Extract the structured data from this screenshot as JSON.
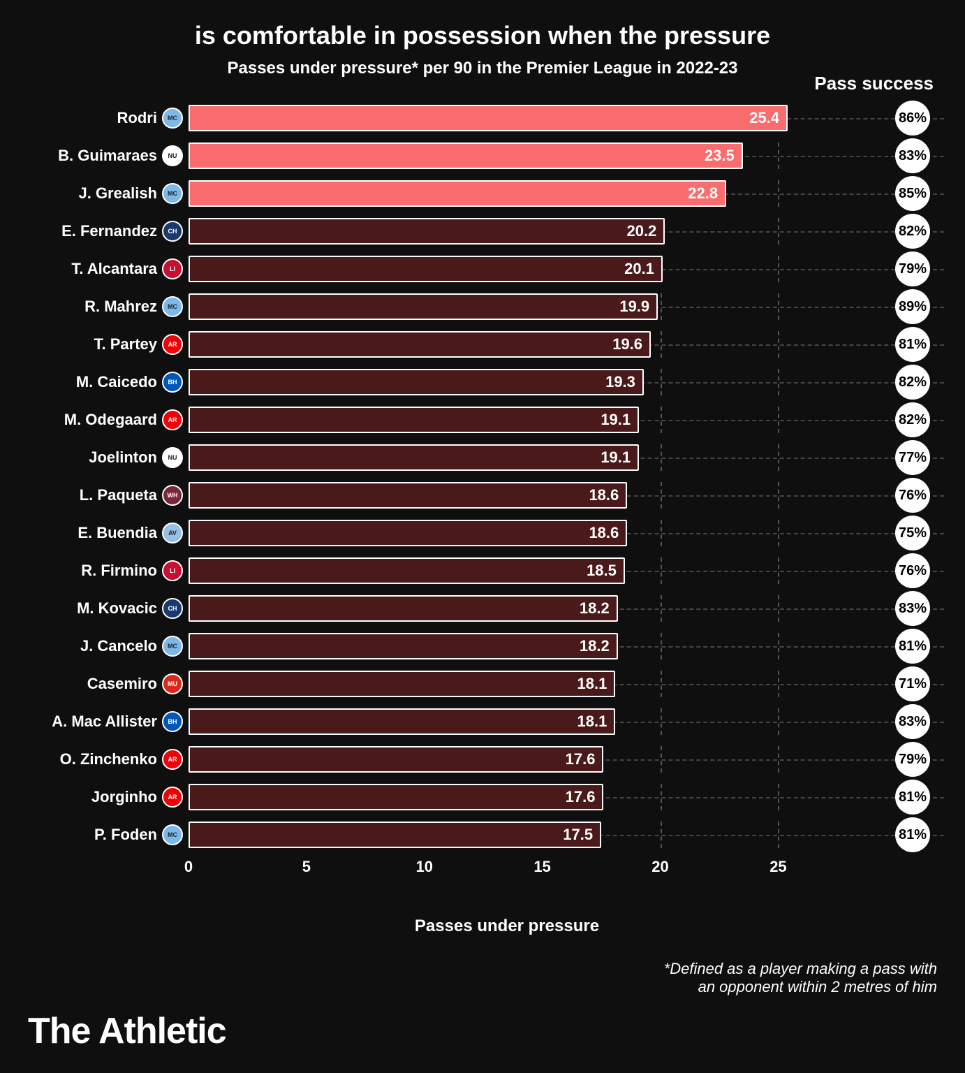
{
  "title": "is comfortable in possession when the pressure",
  "subtitle": "Passes under pressure* per 90 in the Premier League in 2022-23",
  "pass_success_header": "Pass success",
  "axis_label": "Passes under pressure",
  "footnote_line1": "*Defined as a player making a pass with",
  "footnote_line2": "an opponent within 2 metres of him",
  "brand": "The Athletic",
  "chart": {
    "type": "bar-horizontal",
    "xlim": [
      0,
      27
    ],
    "ticks": [
      0,
      5,
      10,
      15,
      20,
      25
    ],
    "background": "#0f0f0f",
    "grid_color": "#555555",
    "bar_border": "#ffffff",
    "pill_bg": "#ffffff",
    "pill_text": "#000000",
    "highlight_bar_color": "#f96d6e",
    "dim_bar_color": "#4a1a1b",
    "rows": [
      {
        "player": "Rodri",
        "value": 25.4,
        "success": "86%",
        "badge_bg": "#7cb9e8",
        "badge_txt": "MC",
        "highlighted": true
      },
      {
        "player": "B. Guimaraes",
        "value": 23.5,
        "success": "83%",
        "badge_bg": "#ffffff",
        "badge_txt": "NU",
        "highlighted": true
      },
      {
        "player": "J. Grealish",
        "value": 22.8,
        "success": "85%",
        "badge_bg": "#7cb9e8",
        "badge_txt": "MC",
        "highlighted": true
      },
      {
        "player": "E. Fernandez",
        "value": 20.2,
        "success": "82%",
        "badge_bg": "#1a3a6e",
        "badge_txt": "CH",
        "highlighted": false
      },
      {
        "player": "T. Alcantara",
        "value": 20.1,
        "success": "79%",
        "badge_bg": "#c8102e",
        "badge_txt": "LI",
        "highlighted": false
      },
      {
        "player": "R. Mahrez",
        "value": 19.9,
        "success": "89%",
        "badge_bg": "#7cb9e8",
        "badge_txt": "MC",
        "highlighted": false
      },
      {
        "player": "T. Partey",
        "value": 19.6,
        "success": "81%",
        "badge_bg": "#ef0107",
        "badge_txt": "AR",
        "highlighted": false
      },
      {
        "player": "M. Caicedo",
        "value": 19.3,
        "success": "82%",
        "badge_bg": "#0057b8",
        "badge_txt": "BH",
        "highlighted": false
      },
      {
        "player": "M. Odegaard",
        "value": 19.1,
        "success": "82%",
        "badge_bg": "#ef0107",
        "badge_txt": "AR",
        "highlighted": false
      },
      {
        "player": "Joelinton",
        "value": 19.1,
        "success": "77%",
        "badge_bg": "#ffffff",
        "badge_txt": "NU",
        "highlighted": false
      },
      {
        "player": "L. Paqueta",
        "value": 18.6,
        "success": "76%",
        "badge_bg": "#7a263a",
        "badge_txt": "WH",
        "highlighted": false
      },
      {
        "player": "E. Buendia",
        "value": 18.6,
        "success": "75%",
        "badge_bg": "#95bfe5",
        "badge_txt": "AV",
        "highlighted": false
      },
      {
        "player": "R. Firmino",
        "value": 18.5,
        "success": "76%",
        "badge_bg": "#c8102e",
        "badge_txt": "LI",
        "highlighted": false
      },
      {
        "player": "M. Kovacic",
        "value": 18.2,
        "success": "83%",
        "badge_bg": "#1a3a6e",
        "badge_txt": "CH",
        "highlighted": false
      },
      {
        "player": "J. Cancelo",
        "value": 18.2,
        "success": "81%",
        "badge_bg": "#7cb9e8",
        "badge_txt": "MC",
        "highlighted": false
      },
      {
        "player": "Casemiro",
        "value": 18.1,
        "success": "71%",
        "badge_bg": "#da291c",
        "badge_txt": "MU",
        "highlighted": false
      },
      {
        "player": "A. Mac Allister",
        "value": 18.1,
        "success": "83%",
        "badge_bg": "#0057b8",
        "badge_txt": "BH",
        "highlighted": false
      },
      {
        "player": "O. Zinchenko",
        "value": 17.6,
        "success": "79%",
        "badge_bg": "#ef0107",
        "badge_txt": "AR",
        "highlighted": false
      },
      {
        "player": "Jorginho",
        "value": 17.6,
        "success": "81%",
        "badge_bg": "#ef0107",
        "badge_txt": "AR",
        "highlighted": false
      },
      {
        "player": "P. Foden",
        "value": 17.5,
        "success": "81%",
        "badge_bg": "#7cb9e8",
        "badge_txt": "MC",
        "highlighted": false
      }
    ]
  }
}
